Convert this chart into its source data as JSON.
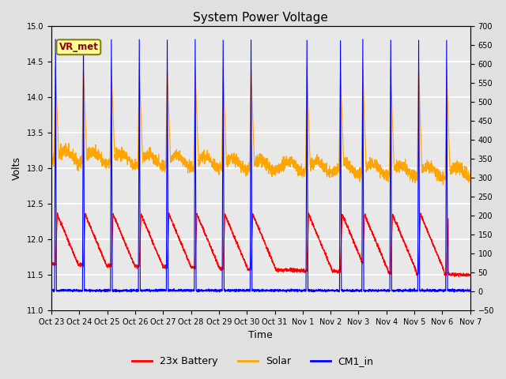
{
  "title": "System Power Voltage",
  "xlabel": "Time",
  "ylabel": "Volts",
  "ylim_left": [
    11.0,
    15.0
  ],
  "ylim_right": [
    -50,
    700
  ],
  "yticks_left": [
    11.0,
    11.5,
    12.0,
    12.5,
    13.0,
    13.5,
    14.0,
    14.5,
    15.0
  ],
  "yticks_right": [
    -50,
    0,
    50,
    100,
    150,
    200,
    250,
    300,
    350,
    400,
    450,
    500,
    550,
    600,
    650,
    700
  ],
  "xtick_labels": [
    "Oct 23",
    "Oct 24",
    "Oct 25",
    "Oct 26",
    "Oct 27",
    "Oct 28",
    "Oct 29",
    "Oct 30",
    "Oct 31",
    "Nov 1",
    "Nov 2",
    "Nov 3",
    "Nov 4",
    "Nov 5",
    "Nov 6",
    "Nov 7"
  ],
  "background_color": "#e0e0e0",
  "plot_bg_color": "#e8e8e8",
  "grid_color": "white",
  "annotation_text": "VR_met",
  "annotation_color": "#8b0000",
  "annotation_bg": "#ffff99",
  "annotation_edge": "#8b8000",
  "legend_labels": [
    "23x Battery",
    "Solar",
    "CM1_in"
  ],
  "legend_colors": [
    "red",
    "orange",
    "blue"
  ],
  "line_colors": {
    "battery": "red",
    "solar": "orange",
    "cm1": "blue"
  },
  "line_widths": {
    "battery": 1.0,
    "solar": 1.0,
    "cm1": 1.0
  }
}
